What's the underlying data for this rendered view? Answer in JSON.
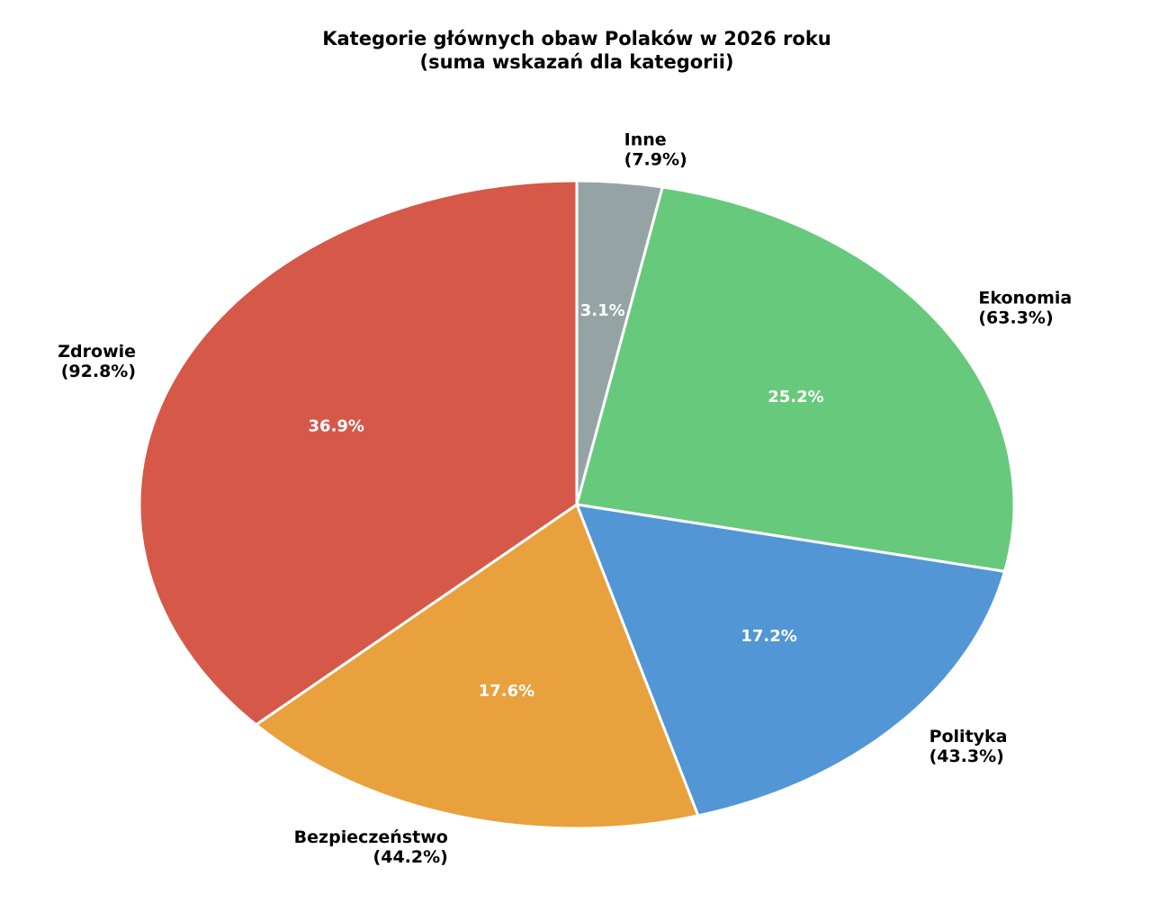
{
  "chart_data": {
    "type": "pie",
    "title": "Kategorie głównych obaw Polaków w 2026 roku",
    "subtitle": "(suma wskazań dla kategorii)",
    "categories": [
      "Inne",
      "Ekonomia",
      "Polityka",
      "Bezpieczeństwo",
      "Zdrowie"
    ],
    "values": [
      7.9,
      63.3,
      43.3,
      44.2,
      92.8
    ],
    "value_labels": [
      "(7.9%)",
      "(63.3%)",
      "(43.3%)",
      "(44.2%)",
      "(92.8%)"
    ],
    "shares": [
      3.1,
      25.2,
      17.2,
      17.6,
      36.9
    ],
    "share_labels": [
      "3.1%",
      "25.2%",
      "17.2%",
      "17.6%",
      "36.9%"
    ],
    "colors": [
      "#95a3a4",
      "#67c97b",
      "#5296d5",
      "#e8a13c",
      "#d65848"
    ]
  }
}
